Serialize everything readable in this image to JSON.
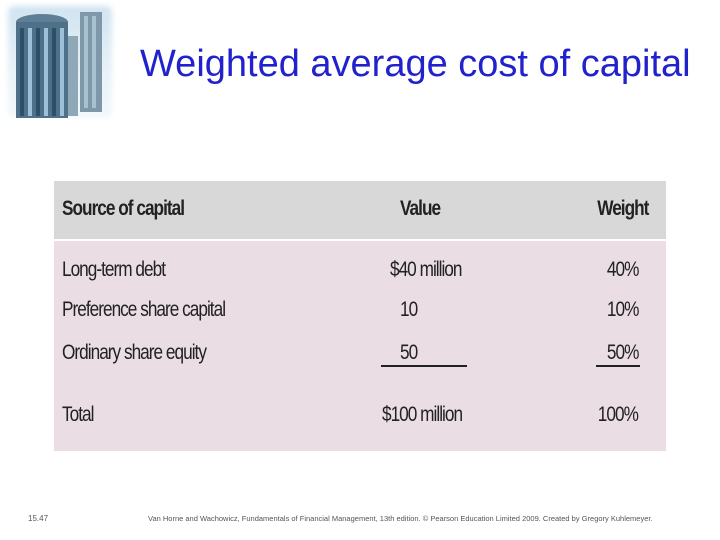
{
  "slide": {
    "title": "Weighted average cost of capital",
    "slide_number": "15.47",
    "footer": "Van Horne and Wachowicz, Fundamentals of Financial Management, 13th edition. © Pearson Education Limited 2009. Created by Gregory Kuhlemeyer."
  },
  "table": {
    "headers": [
      "Source of capital",
      "Value",
      "Weight"
    ],
    "rows": [
      {
        "source": "Long-term debt",
        "value": "$40 million",
        "weight": "40%"
      },
      {
        "source": "Preference share capital",
        "value": "10",
        "weight": "10%"
      },
      {
        "source": "Ordinary share equity",
        "value": "50",
        "weight": "50%"
      }
    ],
    "total": {
      "source": "Total",
      "value": "$100 million",
      "weight": "100%"
    }
  },
  "colors": {
    "title": "#2222cc",
    "table_header_bg": "#d8d8d8",
    "table_body_bg": "#eadde4"
  }
}
